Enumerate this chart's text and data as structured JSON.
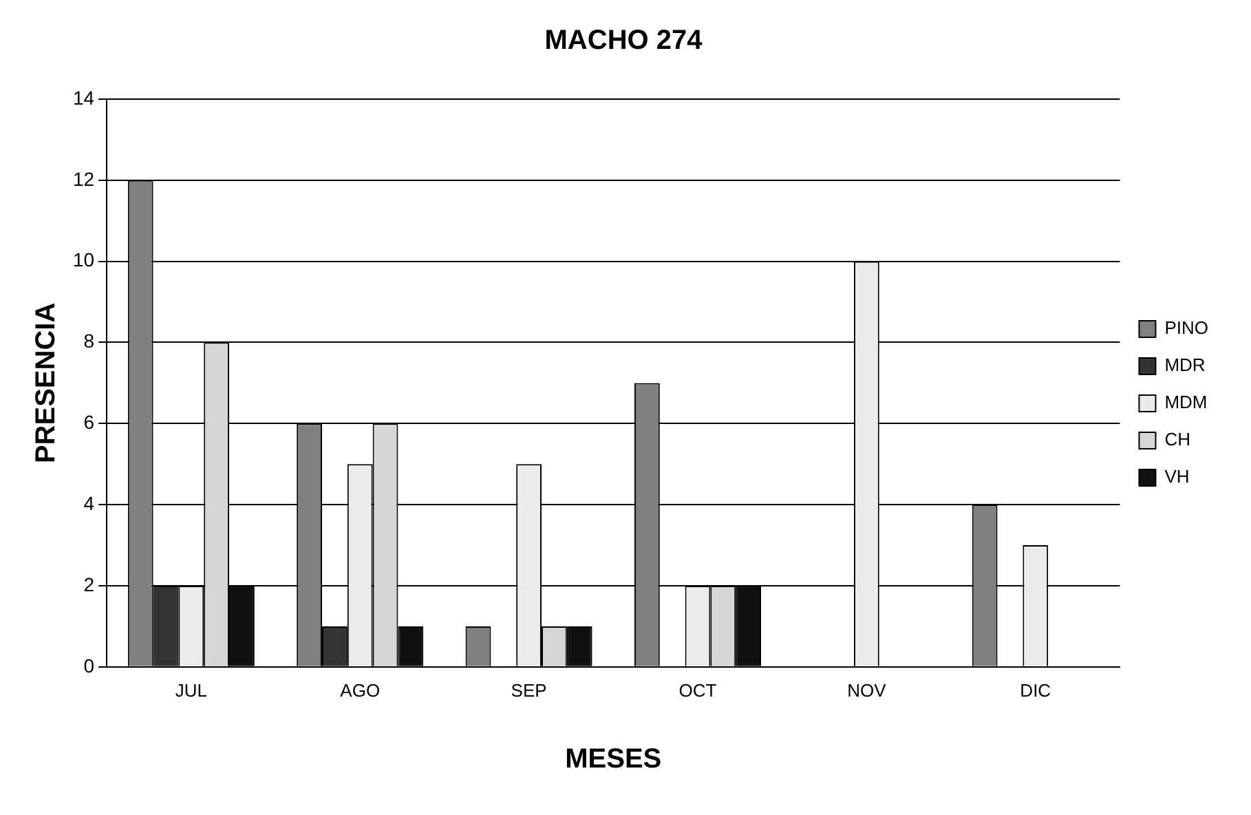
{
  "chart_data": {
    "type": "bar",
    "title": "MACHO 274",
    "xlabel": "MESES",
    "ylabel": "PRESENCIA",
    "categories": [
      "JUL",
      "AGO",
      "SEP",
      "OCT",
      "NOV",
      "DIC"
    ],
    "series": [
      {
        "name": "PINO",
        "color": "#808080",
        "values": [
          12,
          6,
          1,
          7,
          0,
          4
        ]
      },
      {
        "name": "MDR",
        "color": "#333333",
        "values": [
          2,
          1,
          0,
          0,
          0,
          0
        ]
      },
      {
        "name": "MDM",
        "color": "#ebebeb",
        "values": [
          2,
          5,
          5,
          2,
          10,
          3
        ]
      },
      {
        "name": "CH",
        "color": "#d6d6d6",
        "values": [
          8,
          6,
          1,
          2,
          0,
          0
        ]
      },
      {
        "name": "VH",
        "color": "#111111",
        "values": [
          2,
          1,
          1,
          2,
          0,
          0
        ]
      }
    ],
    "ylim": [
      0,
      14
    ],
    "yticks": [
      0,
      2,
      4,
      6,
      8,
      10,
      12,
      14
    ],
    "grid": "y",
    "legend": "right"
  }
}
